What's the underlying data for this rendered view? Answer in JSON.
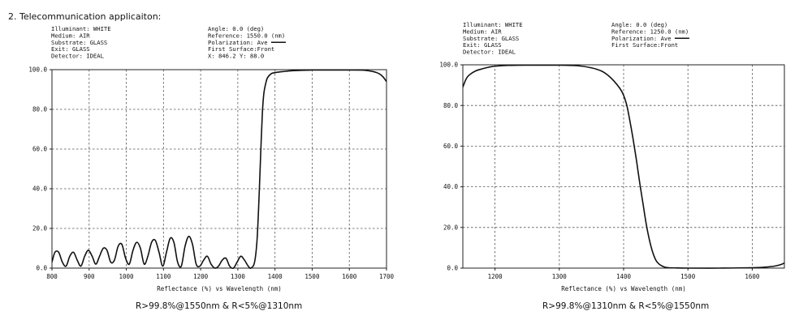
{
  "heading": "2. Telecommunication applicaiton:",
  "captions": [
    "R>99.8%@1550nm & R<5%@1310nm",
    "R>99.8%@1310nm & R<5%@1550nm"
  ],
  "panels": [
    {
      "info_left": [
        "Illuminant: WHITE",
        "Medium:     AIR",
        "Substrate:  GLASS",
        "Exit:       GLASS",
        "Detector:   IDEAL"
      ],
      "info_right": [
        "Angle:          0.0 (deg)",
        "Reference:   1550.0 (nm)",
        "Polarization: Ave",
        "First Surface:Front",
        "X:  846.2  Y:  88.0"
      ]
    },
    {
      "info_left": [
        "Illuminant: WHITE",
        "Medium:     AIR",
        "Substrate:  GLASS",
        "Exit:       GLASS",
        "Detector:   IDEAL"
      ],
      "info_right": [
        "Angle:          0.0 (deg)",
        "Reference:   1250.0 (nm)",
        "Polarization: Ave",
        "First Surface:Front"
      ]
    }
  ],
  "chart_data": [
    {
      "type": "line",
      "xlabel": "Reflectance (%)  vs  Wavelength (nm)",
      "xlim": [
        800,
        1700
      ],
      "ylim": [
        0,
        100
      ],
      "x_ticks": [
        "800",
        "900",
        "1000",
        "1100",
        "1200",
        "1300",
        "1400",
        "1500",
        "1600",
        "1700"
      ],
      "y_ticks": [
        "100.0",
        "80.0",
        "60.0",
        "40.0",
        "20.0",
        "0.0"
      ],
      "grid": true,
      "series": [
        {
          "x": [
            800,
            808,
            818,
            828,
            838,
            848,
            858,
            868,
            878,
            888,
            898,
            908,
            918,
            928,
            938,
            948,
            958,
            968,
            978,
            988,
            998,
            1008,
            1018,
            1028,
            1038,
            1048,
            1058,
            1068,
            1078,
            1088,
            1098,
            1108,
            1118,
            1128,
            1138,
            1148,
            1158,
            1168,
            1178,
            1188,
            1198,
            1208,
            1218,
            1228,
            1238,
            1248,
            1258,
            1268,
            1278,
            1288,
            1298,
            1308,
            1318,
            1328,
            1335,
            1345,
            1352,
            1358,
            1362,
            1366,
            1370,
            1375,
            1380,
            1390,
            1400,
            1420,
            1450,
            1500,
            1550,
            1600,
            1640,
            1665,
            1680,
            1690,
            1700
          ],
          "y": [
            3,
            8,
            8,
            3,
            1,
            6,
            8,
            4,
            1,
            6,
            9,
            6,
            2,
            6,
            10,
            9,
            3,
            4,
            11,
            12,
            5,
            2,
            9,
            13,
            10,
            2,
            6,
            13,
            14,
            8,
            1,
            8,
            15,
            13,
            3,
            1,
            11,
            16,
            12,
            2,
            1,
            4,
            6,
            2,
            0,
            1,
            4,
            5,
            1,
            0,
            3,
            6,
            4,
            1,
            0,
            3,
            15,
            40,
            60,
            78,
            88,
            93,
            96,
            98,
            98.5,
            99,
            99.5,
            99.8,
            99.8,
            99.8,
            99.7,
            99,
            98,
            96.5,
            94
          ]
        }
      ]
    },
    {
      "type": "line",
      "xlabel": "Reflectance (%)  vs  Wavelength (nm)",
      "xlim": [
        1150,
        1650
      ],
      "ylim": [
        0,
        100
      ],
      "x_ticks": [
        "1200",
        "1300",
        "1400",
        "1500",
        "1600"
      ],
      "y_ticks": [
        "100.0",
        "80.0",
        "60.0",
        "40.0",
        "20.0",
        "0.0"
      ],
      "grid": true,
      "series": [
        {
          "x": [
            1150,
            1155,
            1160,
            1170,
            1180,
            1190,
            1200,
            1220,
            1250,
            1300,
            1330,
            1350,
            1365,
            1375,
            1385,
            1395,
            1400,
            1405,
            1410,
            1415,
            1420,
            1425,
            1430,
            1435,
            1440,
            1445,
            1450,
            1455,
            1460,
            1465,
            1470,
            1480,
            1500,
            1550,
            1600,
            1620,
            1635,
            1645,
            1650
          ],
          "y": [
            89,
            93,
            95,
            97,
            98,
            98.8,
            99.3,
            99.7,
            99.8,
            99.8,
            99.5,
            98.5,
            97,
            95,
            92,
            88,
            85,
            80,
            72,
            63,
            53,
            42,
            32,
            22,
            14,
            8,
            4,
            2,
            1,
            0.4,
            0.2,
            0.1,
            0,
            0,
            0.2,
            0.5,
            1,
            1.8,
            2.5
          ]
        }
      ]
    }
  ]
}
